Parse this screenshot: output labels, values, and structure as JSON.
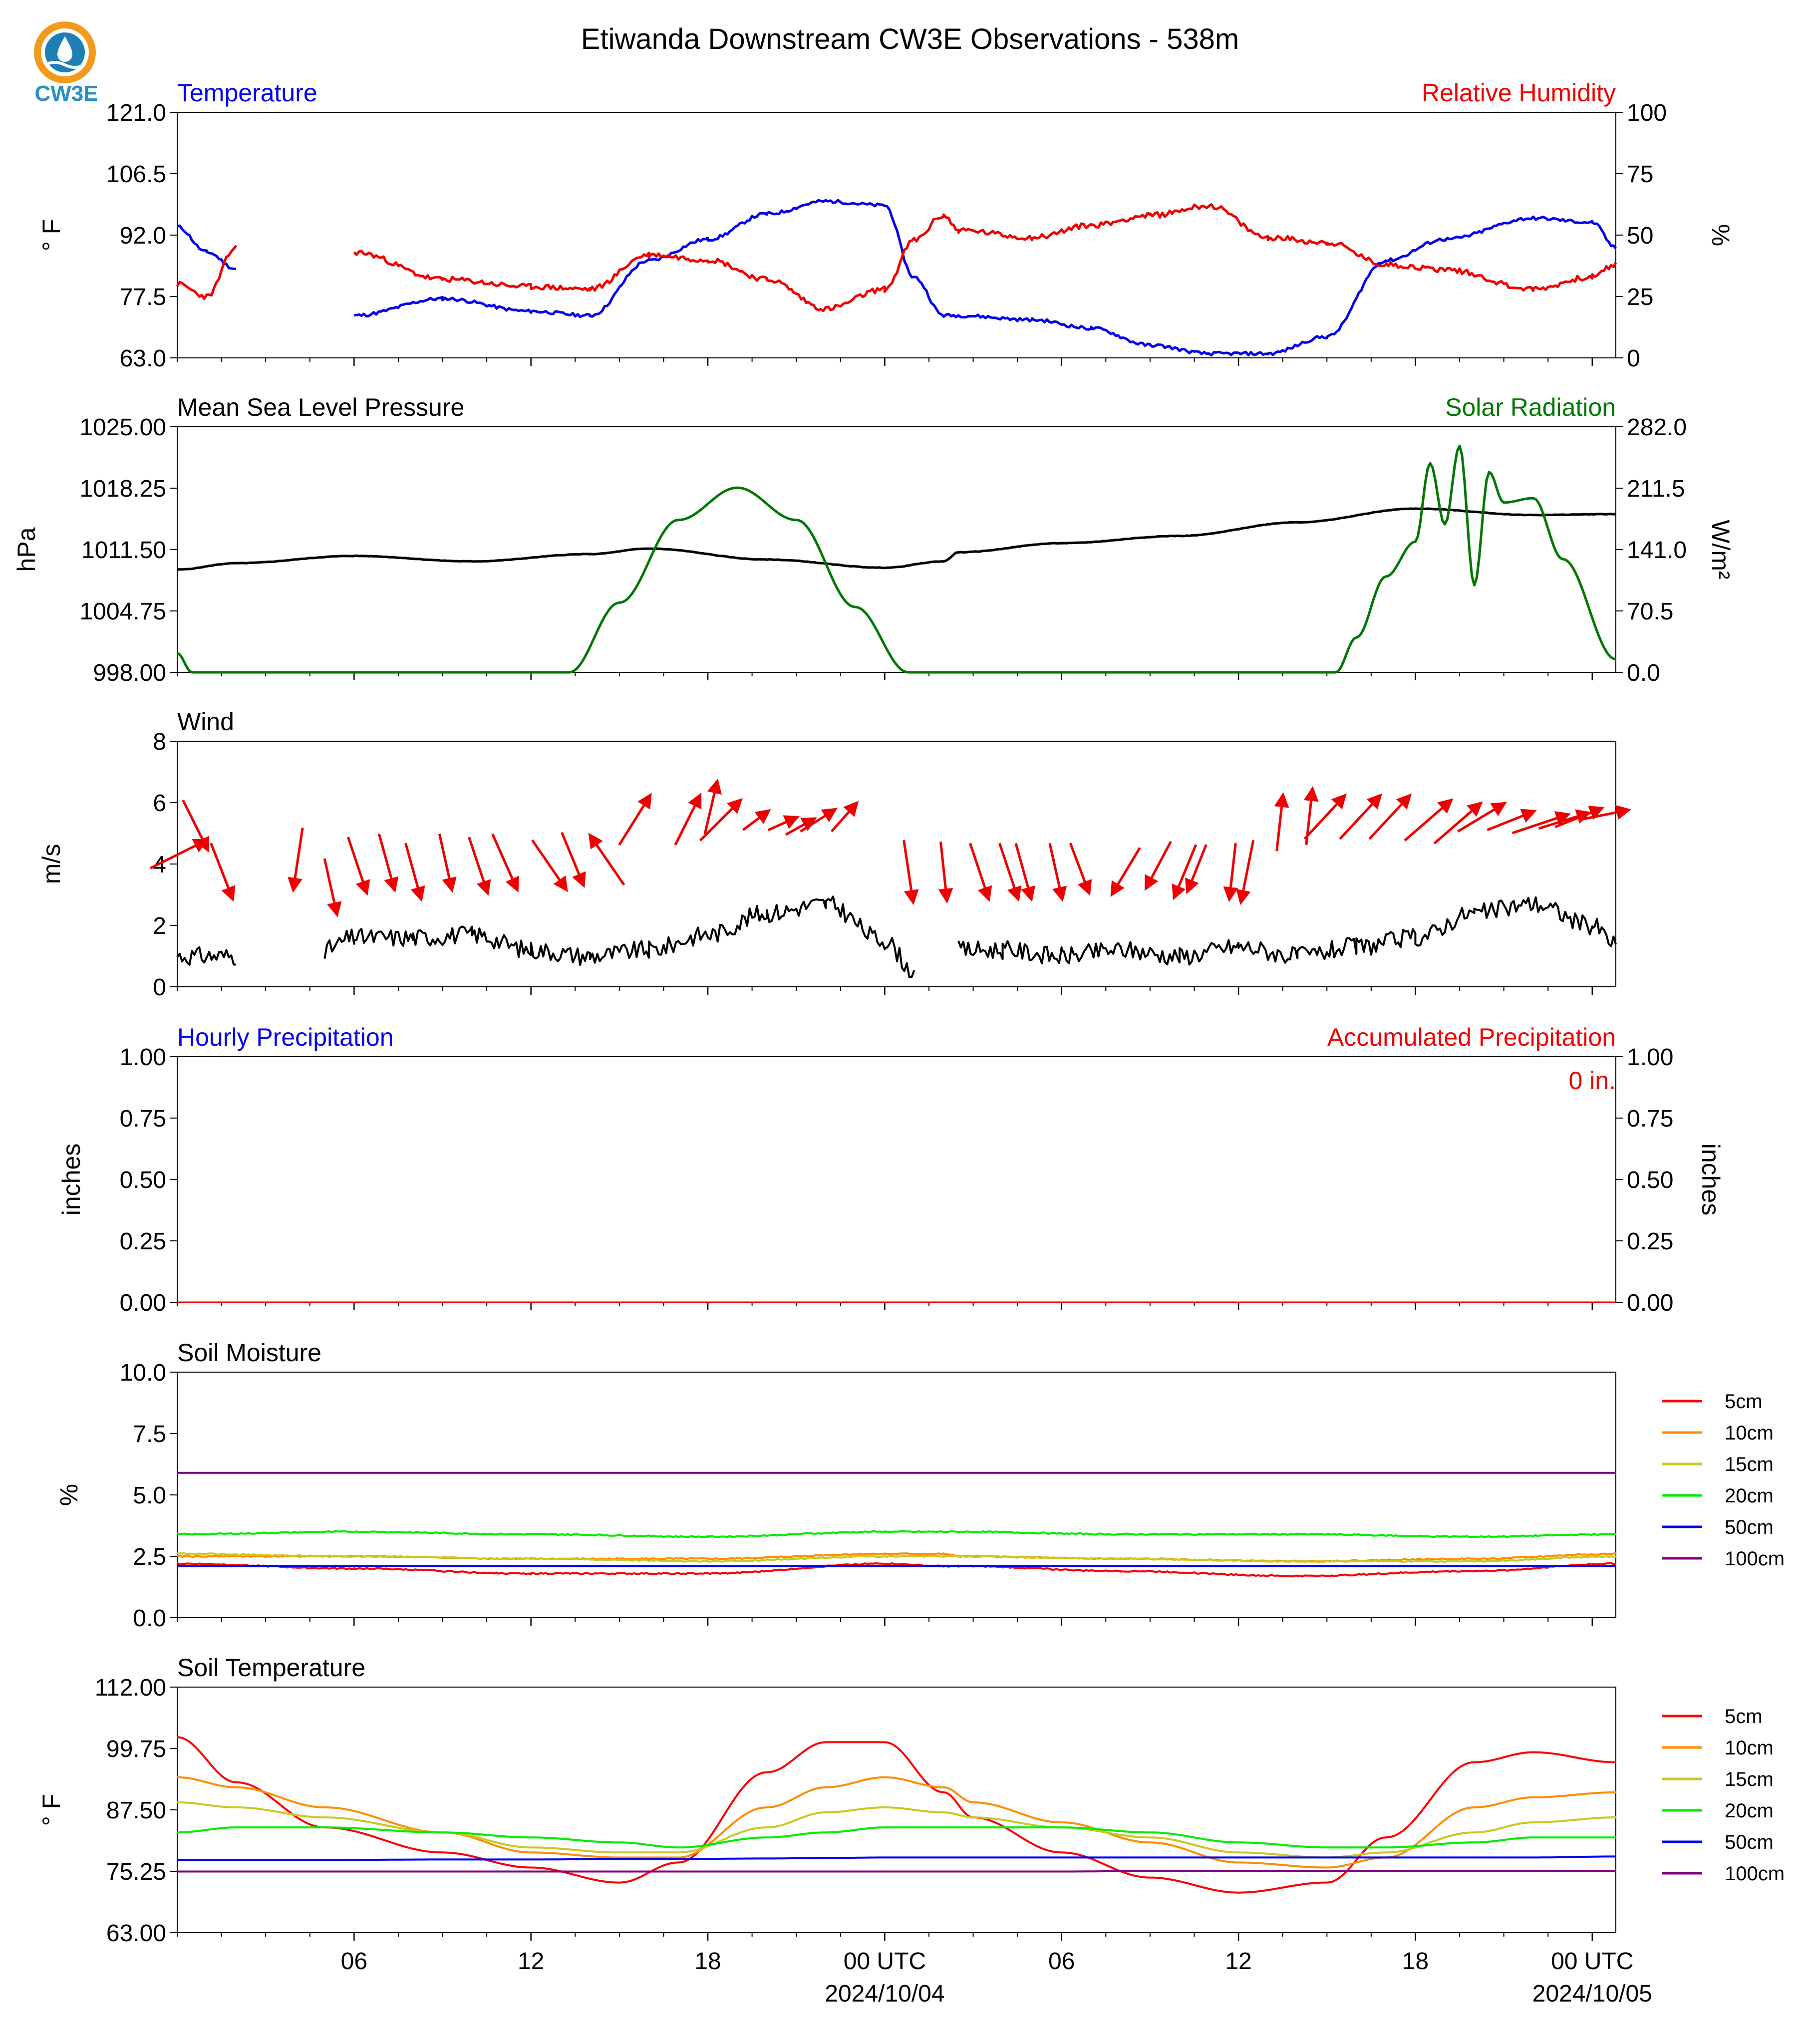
{
  "title": "Etiwanda Downstream CW3E Observations - 538m",
  "logo_text": "CW3E",
  "colors": {
    "temp": "#0000ee",
    "rh": "#ee0000",
    "pressure": "#000000",
    "solar": "#007700",
    "wind": "#000000",
    "arrow": "#ee0000",
    "hourly": "#0000ee",
    "accum": "#ee0000"
  },
  "x_axis": {
    "tick_labels": [
      "06",
      "12",
      "18",
      "00 UTC",
      "06",
      "12",
      "18",
      "00 UTC"
    ],
    "date_labels": [
      "2024/10/04",
      "2024/10/05"
    ]
  },
  "panels": {
    "temperature": {
      "title_left": "Temperature",
      "title_right": "Relative Humidity",
      "ylabel_left": "° F",
      "ylabel_right": "%",
      "yticks_left": [
        "121.0",
        "106.5",
        "92.0",
        "77.5",
        "63.0"
      ],
      "yticks_right": [
        "100",
        "75",
        "50",
        "25",
        "0"
      ]
    },
    "pressure": {
      "title_left": "Mean Sea Level Pressure",
      "title_right": "Solar Radiation",
      "ylabel_left": "hPa",
      "ylabel_right": "W/m²",
      "yticks_left": [
        "1025.00",
        "1018.25",
        "1011.50",
        "1004.75",
        "998.00"
      ],
      "yticks_right": [
        "282.0",
        "211.5",
        "141.0",
        "70.5",
        "0.0"
      ]
    },
    "wind": {
      "title_left": "Wind",
      "ylabel_left": "m/s",
      "yticks_left": [
        "8",
        "6",
        "4",
        "2",
        "0"
      ]
    },
    "precip": {
      "title_left": "Hourly Precipitation",
      "title_right": "Accumulated Precipitation",
      "ylabel_left": "inches",
      "ylabel_right": "inches",
      "yticks_left": [
        "1.00",
        "0.75",
        "0.50",
        "0.25",
        "0.00"
      ],
      "yticks_right": [
        "1.00",
        "0.75",
        "0.50",
        "0.25",
        "0.00"
      ],
      "total": "0 in."
    },
    "soil_moisture": {
      "title_left": "Soil Moisture",
      "ylabel_left": "%",
      "yticks_left": [
        "10.0",
        "7.5",
        "5.0",
        "2.5",
        "0.0"
      ],
      "legend": [
        "5cm",
        "10cm",
        "15cm",
        "20cm",
        "50cm",
        "100cm"
      ],
      "legend_colors": [
        "#ff0000",
        "#ff8c00",
        "#c8c81e",
        "#00ee00",
        "#0000ee",
        "#800080"
      ]
    },
    "soil_temperature": {
      "title_left": "Soil Temperature",
      "ylabel_left": "° F",
      "yticks_left": [
        "112.00",
        "99.75",
        "87.50",
        "75.25",
        "63.00"
      ],
      "legend": [
        "5cm",
        "10cm",
        "15cm",
        "20cm",
        "50cm",
        "100cm"
      ],
      "legend_colors": [
        "#ff0000",
        "#ff8c00",
        "#c8c81e",
        "#00ee00",
        "#0000ee",
        "#800080"
      ]
    }
  },
  "chart_data": [
    {
      "type": "line",
      "title": "Temperature",
      "ylabel": "° F",
      "ylim": [
        63,
        121
      ],
      "x_hours": [
        0,
        1,
        2,
        3,
        6,
        9,
        12,
        14,
        16,
        18,
        20,
        22,
        24,
        25,
        26,
        26.5,
        29,
        31,
        33,
        35,
        37,
        39,
        41,
        43,
        46,
        48,
        48.8
      ],
      "series": [
        {
          "name": "Temperature",
          "values": [
            94,
            88,
            84,
            null,
            73,
            77,
            74,
            73,
            86,
            91,
            97,
            100,
            99,
            82,
            73,
            73,
            72,
            70,
            66,
            64,
            64,
            68,
            86,
            91,
            96,
            95,
            89
          ]
        }
      ]
    },
    {
      "type": "line",
      "title": "Relative Humidity",
      "ylabel": "%",
      "ylim": [
        0,
        100
      ],
      "x_hours": [
        0,
        1,
        2,
        3,
        6,
        9,
        12,
        14,
        16,
        18,
        20,
        22,
        24,
        25,
        26,
        26.5,
        29,
        31,
        33,
        35,
        37,
        39,
        41,
        43,
        46,
        48,
        48.8
      ],
      "series": [
        {
          "name": "Relative Humidity",
          "values": [
            30,
            25,
            45,
            null,
            43,
            32,
            29,
            28,
            42,
            40,
            32,
            20,
            28,
            48,
            58,
            52,
            49,
            54,
            58,
            62,
            49,
            47,
            38,
            36,
            28,
            33,
            38
          ]
        }
      ]
    },
    {
      "type": "line",
      "title": "Mean Sea Level Pressure",
      "ylabel": "hPa",
      "ylim": [
        998,
        1025
      ],
      "x_hours": [
        0,
        2,
        6,
        10,
        14,
        16,
        20,
        24,
        26,
        26.5,
        30,
        34,
        38,
        42,
        46,
        48.8
      ],
      "series": [
        {
          "name": "Mean Sea Level Pressure",
          "values": [
            1009.3,
            1010.0,
            1010.8,
            1010.2,
            1011.0,
            1011.6,
            1010.4,
            1009.5,
            1010.2,
            1011.2,
            1012.2,
            1013.0,
            1014.5,
            1016.0,
            1015.3,
            1015.4
          ]
        }
      ]
    },
    {
      "type": "line",
      "title": "Solar Radiation",
      "ylabel": "W/m²",
      "ylim": [
        0,
        282
      ],
      "x_hours": [
        0,
        0.5,
        13.3,
        15,
        17,
        19,
        21,
        23,
        24.8,
        26,
        39.3,
        40,
        41,
        42,
        42.5,
        43,
        43.5,
        44,
        44.5,
        45,
        46,
        47,
        48.8
      ],
      "series": [
        {
          "name": "Solar Radiation",
          "values": [
            22,
            0,
            0,
            80,
            175,
            212,
            175,
            75,
            0,
            0,
            0,
            40,
            110,
            150,
            240,
            170,
            260,
            100,
            230,
            195,
            200,
            130,
            15
          ]
        }
      ]
    },
    {
      "type": "line",
      "title": "Wind",
      "ylabel": "m/s",
      "ylim": [
        0,
        8
      ],
      "x_hours": [
        0,
        2,
        3,
        5,
        6,
        8,
        10,
        12,
        14,
        16,
        18,
        20,
        22,
        24,
        25,
        26,
        26.5,
        28,
        30,
        32,
        34,
        36,
        38,
        40,
        42,
        44,
        46,
        48,
        48.8
      ],
      "series": [
        {
          "name": "Wind speed",
          "values": [
            1.0,
            1.0,
            null,
            1.2,
            1.6,
            1.6,
            1.7,
            1.2,
            1.0,
            1.2,
            1.7,
            2.4,
            2.7,
            1.5,
            0.5,
            null,
            1.2,
            1.2,
            1.0,
            1.2,
            1.0,
            1.3,
            1.0,
            1.3,
            1.6,
            2.4,
            2.7,
            2.0,
            1.4
          ]
        }
      ]
    },
    {
      "type": "line",
      "title": "Hourly Precipitation",
      "ylabel": "inches",
      "ylim": [
        0,
        1
      ],
      "x_hours": [
        0,
        48.8
      ],
      "series": [
        {
          "name": "Hourly Precipitation",
          "values": [
            0,
            0
          ]
        },
        {
          "name": "Accumulated Precipitation",
          "values": [
            0,
            0
          ]
        }
      ]
    },
    {
      "type": "line",
      "title": "Soil Moisture",
      "ylabel": "%",
      "ylim": [
        0,
        10
      ],
      "x_hours": [
        0,
        6,
        12,
        18,
        24,
        26,
        26.5,
        32,
        38,
        44,
        48.8
      ],
      "series": [
        {
          "name": "5cm",
          "values": [
            2.2,
            2.0,
            1.8,
            1.8,
            2.2,
            2.1,
            2.1,
            1.9,
            1.7,
            1.9,
            2.2
          ]
        },
        {
          "name": "10cm",
          "values": [
            2.5,
            2.5,
            2.4,
            2.4,
            2.6,
            2.6,
            2.5,
            2.4,
            2.3,
            2.4,
            2.6
          ]
        },
        {
          "name": "15cm",
          "values": [
            2.6,
            2.5,
            2.4,
            2.3,
            2.5,
            2.5,
            2.5,
            2.4,
            2.3,
            2.3,
            2.5
          ]
        },
        {
          "name": "20cm",
          "values": [
            3.4,
            3.5,
            3.4,
            3.3,
            3.5,
            3.5,
            3.5,
            3.4,
            3.4,
            3.3,
            3.4
          ]
        },
        {
          "name": "50cm",
          "values": [
            2.1,
            2.1,
            2.1,
            2.1,
            2.1,
            2.1,
            2.1,
            2.1,
            2.1,
            2.1,
            2.1
          ]
        },
        {
          "name": "100cm",
          "values": [
            5.9,
            5.9,
            5.9,
            5.9,
            5.9,
            5.9,
            5.9,
            5.9,
            5.9,
            5.9,
            5.9
          ]
        }
      ]
    },
    {
      "type": "line",
      "title": "Soil Temperature",
      "ylabel": "° F",
      "ylim": [
        63,
        112
      ],
      "x_hours": [
        0,
        2,
        5,
        9,
        12,
        15,
        17,
        20,
        22,
        24,
        26,
        27,
        30,
        33,
        36,
        39,
        41,
        44,
        46,
        48.8
      ],
      "series": [
        {
          "name": "5cm",
          "values": [
            102,
            93,
            84,
            79,
            76,
            73,
            77,
            95,
            101,
            101,
            91,
            86,
            79,
            74,
            71,
            73,
            82,
            97,
            99,
            97
          ]
        },
        {
          "name": "10cm",
          "values": [
            94,
            92,
            88,
            83,
            79,
            78,
            78,
            88,
            92,
            94,
            92,
            89,
            85,
            81,
            77,
            76,
            78,
            88,
            90,
            91
          ]
        },
        {
          "name": "15cm",
          "values": [
            89,
            88,
            86,
            83,
            80,
            79,
            79,
            84,
            87,
            88,
            87,
            86,
            84,
            82,
            79,
            78,
            79,
            83,
            85,
            86
          ]
        },
        {
          "name": "20cm",
          "values": [
            83,
            84,
            84,
            83,
            82,
            81,
            80,
            82,
            83,
            84,
            84,
            84,
            84,
            83,
            81,
            80,
            80,
            81,
            82,
            82
          ]
        },
        {
          "name": "50cm",
          "values": [
            77.5,
            77.5,
            77.5,
            77.6,
            77.6,
            77.7,
            77.7,
            77.8,
            77.9,
            78,
            78,
            78,
            78,
            78,
            78,
            78,
            78,
            78,
            78,
            78.2
          ]
        },
        {
          "name": "100cm",
          "values": [
            75.2,
            75.2,
            75.2,
            75.2,
            75.2,
            75.2,
            75.2,
            75.2,
            75.2,
            75.2,
            75.2,
            75.2,
            75.2,
            75.3,
            75.3,
            75.3,
            75.3,
            75.3,
            75.3,
            75.3
          ]
        }
      ]
    },
    {
      "type": "scatter",
      "title": "Wind direction arrows",
      "ylabel": "m/s",
      "ylim": [
        0,
        8
      ],
      "x_hours": [
        0,
        0.6,
        1.5,
        4.1,
        5.2,
        6.1,
        7.1,
        8.0,
        9.1,
        10.2,
        11.1,
        12.6,
        13.4,
        14.6,
        15.5,
        17.3,
        18.1,
        18.4,
        19.6,
        20.5,
        21.1,
        21.7,
        22.6,
        24.8,
        26.0,
        27.2,
        28.2,
        28.7,
        29.8,
        30.6,
        32.2,
        33.3,
        34.2,
        34.6,
        35.8,
        36.3,
        37.4,
        38.4,
        38.9,
        40.1,
        41.1,
        42.4,
        43.4,
        44.2,
        45.2,
        46.2,
        47.0,
        47.5,
        48.4
      ],
      "y": [
        4.3,
        5.3,
        3.8,
        4.2,
        3.3,
        4.0,
        4.1,
        3.8,
        4.1,
        4.0,
        4.1,
        4.0,
        4.2,
        4.1,
        5.4,
        5.4,
        5.8,
        5.4,
        5.4,
        5.3,
        5.2,
        5.4,
        5.5,
        3.8,
        3.8,
        3.8,
        3.8,
        3.8,
        3.8,
        3.9,
        3.8,
        4.0,
        3.8,
        3.9,
        3.8,
        3.8,
        5.3,
        5.5,
        5.5,
        5.5,
        5.5,
        5.4,
        5.3,
        5.5,
        5.4,
        5.3,
        5.4,
        5.5,
        5.6
      ],
      "u": [
        1.8,
        0.8,
        0.7,
        -0.3,
        0.4,
        0.6,
        0.5,
        0.5,
        0.4,
        0.6,
        0.8,
        1.1,
        0.7,
        -1.1,
        1.0,
        0.8,
        0.4,
        1.3,
        0.8,
        0.9,
        0.9,
        1.1,
        0.8,
        0.3,
        0.2,
        0.6,
        0.6,
        0.5,
        0.4,
        0.6,
        -0.9,
        -0.8,
        -0.7,
        -0.6,
        -0.2,
        -0.4,
        0.2,
        0.2,
        1.3,
        1.3,
        1.3,
        1.5,
        1.5,
        1.5,
        1.5,
        1.8,
        1.6,
        1.5,
        1.5
      ],
      "v": [
        0.9,
        -1.6,
        -1.8,
        -2.0,
        -1.8,
        -1.8,
        -1.8,
        -1.8,
        -1.8,
        -1.8,
        -1.8,
        -1.6,
        -1.7,
        1.6,
        1.6,
        1.6,
        1.7,
        1.3,
        0.6,
        0.4,
        0.5,
        0.7,
        0.9,
        -2.0,
        -1.9,
        -1.8,
        -1.8,
        -1.8,
        -1.8,
        -1.6,
        -1.5,
        -1.5,
        -1.7,
        -1.5,
        -1.8,
        -2.0,
        1.8,
        1.8,
        1.4,
        1.4,
        1.4,
        1.3,
        1.3,
        0.9,
        0.6,
        0.6,
        0.5,
        0.6,
        0.3
      ]
    }
  ]
}
